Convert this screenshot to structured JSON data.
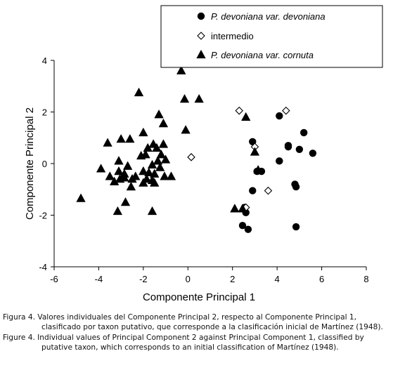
{
  "chart_data": {
    "type": "scatter",
    "xlabel": "Componente Principal 1",
    "ylabel": "Componente Principal 2",
    "xlim": [
      -6,
      8
    ],
    "ylim": [
      -4,
      4
    ],
    "xticks": [
      -6,
      -4,
      -2,
      0,
      2,
      4,
      6,
      8
    ],
    "yticks": [
      -4,
      -2,
      0,
      2,
      4
    ],
    "tick_labels_x": [
      "-6",
      "-4",
      "-2",
      "0",
      "2",
      "4",
      "6",
      "8"
    ],
    "tick_labels_y": [
      "-4",
      "-2",
      "0",
      "2",
      "4"
    ],
    "grid": false,
    "legend_position": "top-right",
    "series": [
      {
        "name": "P. devoniana var. devoniana",
        "marker": "filled-circle",
        "color": "#000000",
        "points": [
          [
            4.1,
            1.85
          ],
          [
            5.2,
            1.2
          ],
          [
            2.9,
            0.85
          ],
          [
            4.5,
            0.7
          ],
          [
            4.5,
            0.65
          ],
          [
            5.0,
            0.55
          ],
          [
            5.6,
            0.4
          ],
          [
            4.1,
            0.1
          ],
          [
            3.1,
            -0.3
          ],
          [
            3.3,
            -0.3
          ],
          [
            4.8,
            -0.8
          ],
          [
            4.85,
            -0.9
          ],
          [
            2.9,
            -1.05
          ],
          [
            2.55,
            -1.7
          ],
          [
            2.6,
            -1.9
          ],
          [
            2.45,
            -2.4
          ],
          [
            2.7,
            -2.55
          ],
          [
            4.85,
            -2.45
          ]
        ]
      },
      {
        "name": "intermedio",
        "marker": "open-diamond",
        "color": "#000000",
        "points": [
          [
            2.3,
            2.05
          ],
          [
            4.4,
            2.05
          ],
          [
            0.15,
            0.25
          ],
          [
            3.0,
            0.65
          ],
          [
            3.6,
            -1.05
          ],
          [
            2.6,
            -1.7
          ]
        ]
      },
      {
        "name": "P. devoniana var. cornuta",
        "marker": "filled-triangle",
        "color": "#000000",
        "points": [
          [
            -0.3,
            3.6
          ],
          [
            -2.2,
            2.75
          ],
          [
            -0.15,
            2.5
          ],
          [
            0.5,
            2.5
          ],
          [
            -1.3,
            1.9
          ],
          [
            -1.1,
            1.55
          ],
          [
            -2.0,
            1.2
          ],
          [
            -0.1,
            1.3
          ],
          [
            -3.0,
            0.95
          ],
          [
            -2.6,
            0.95
          ],
          [
            -3.6,
            0.8
          ],
          [
            -1.1,
            0.75
          ],
          [
            -1.55,
            0.75
          ],
          [
            -1.8,
            0.6
          ],
          [
            -1.4,
            0.6
          ],
          [
            -2.1,
            0.3
          ],
          [
            -1.2,
            0.35
          ],
          [
            -1.9,
            0.35
          ],
          [
            -3.1,
            0.1
          ],
          [
            -1.35,
            0.1
          ],
          [
            -1.0,
            0.15
          ],
          [
            -2.7,
            -0.1
          ],
          [
            -1.6,
            -0.05
          ],
          [
            -1.25,
            -0.15
          ],
          [
            -3.9,
            -0.2
          ],
          [
            -3.1,
            -0.3
          ],
          [
            -2.0,
            -0.3
          ],
          [
            -1.75,
            -0.35
          ],
          [
            -1.5,
            -0.4
          ],
          [
            -2.85,
            -0.4
          ],
          [
            -3.5,
            -0.5
          ],
          [
            -2.35,
            -0.5
          ],
          [
            -1.05,
            -0.5
          ],
          [
            -0.75,
            -0.5
          ],
          [
            -3.05,
            -0.6
          ],
          [
            -2.85,
            -0.55
          ],
          [
            -2.5,
            -0.6
          ],
          [
            -1.85,
            -0.6
          ],
          [
            -1.6,
            -0.65
          ],
          [
            -3.3,
            -0.7
          ],
          [
            -2.0,
            -0.75
          ],
          [
            -1.5,
            -0.75
          ],
          [
            -2.55,
            -0.9
          ],
          [
            -4.8,
            -1.35
          ],
          [
            -2.8,
            -1.5
          ],
          [
            -3.15,
            -1.85
          ],
          [
            -1.6,
            -1.85
          ],
          [
            2.1,
            -1.75
          ],
          [
            2.45,
            -1.75
          ],
          [
            2.6,
            1.8
          ],
          [
            3.0,
            0.45
          ],
          [
            3.15,
            -0.25
          ]
        ]
      }
    ]
  },
  "caption": {
    "es_line1": "Figura 4. Valores individuales del Componente Principal 2, respecto al Componente Principal 1,",
    "es_line2": "clasificado por taxon putativo, que corresponde a la clasificación inicial de Martínez (1948).",
    "en_line1": "Figure 4. Individual values of Principal Component 2 against Principal Component 1, classified by",
    "en_line2": "putative taxon, which corresponds to an initial classification of Martínez (1948)."
  }
}
